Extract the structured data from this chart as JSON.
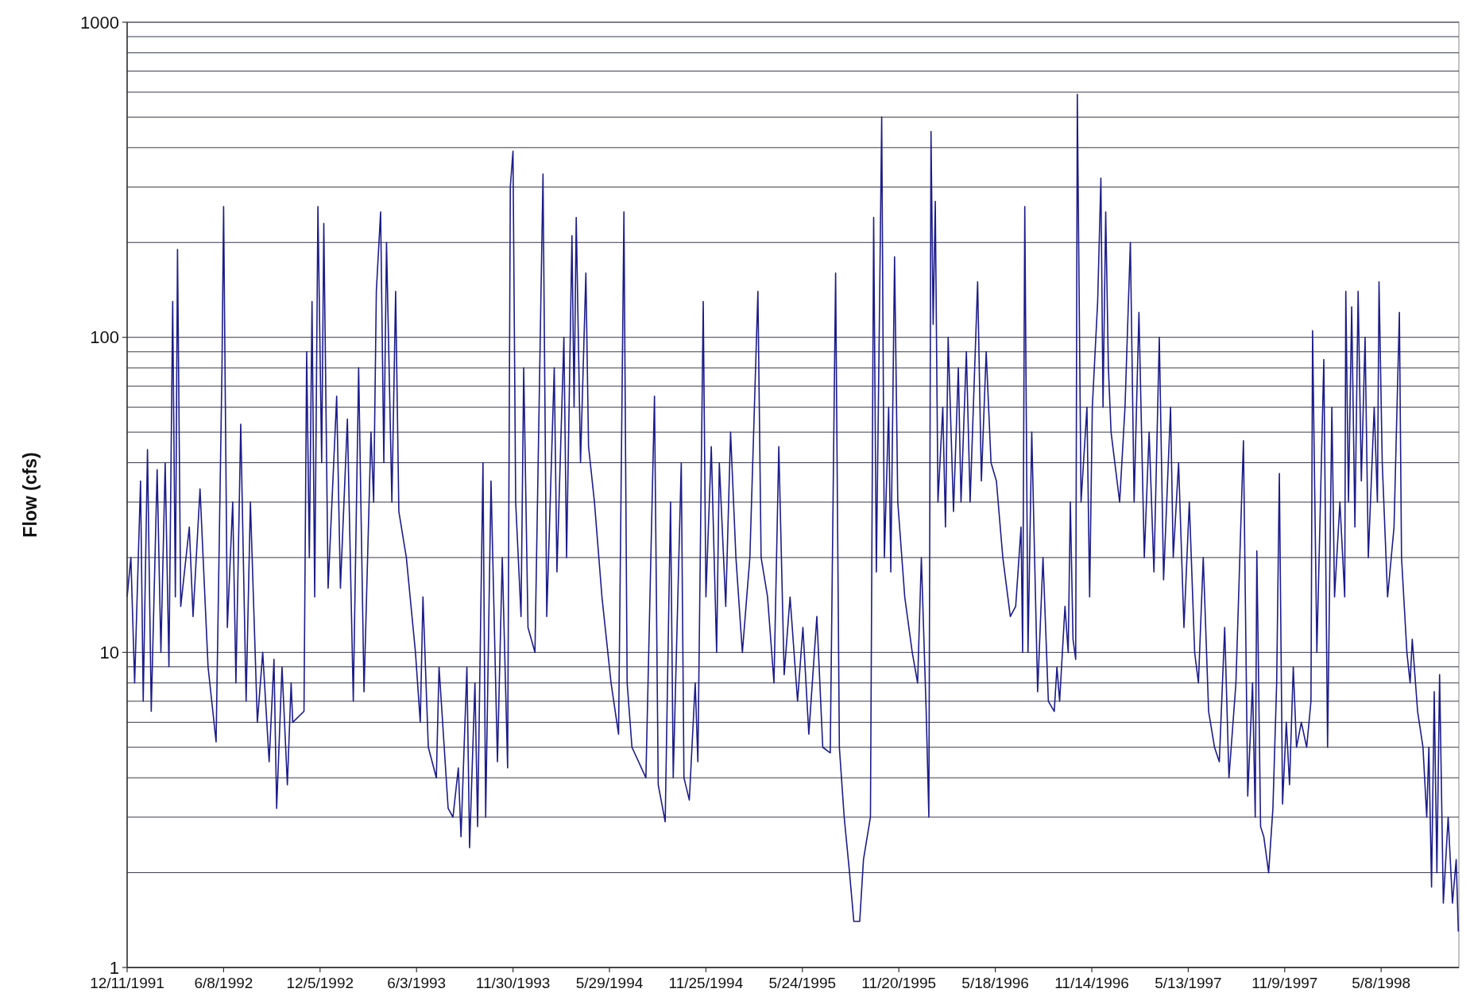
{
  "chart_data": {
    "type": "line",
    "ylabel": "Flow (cfs)",
    "log": "y",
    "grid": "y",
    "marker": "none",
    "line_style": "solid",
    "xlim": [
      "1991-12-11",
      "1998-09-30"
    ],
    "xticks": [
      {
        "value": "1991-12-11",
        "label": "12/11/1991"
      },
      {
        "value": "1992-06-08",
        "label": "6/8/1992"
      },
      {
        "value": "1992-12-05",
        "label": "12/5/1992"
      },
      {
        "value": "1993-06-03",
        "label": "6/3/1993"
      },
      {
        "value": "1993-11-30",
        "label": "11/30/1993"
      },
      {
        "value": "1994-05-29",
        "label": "5/29/1994"
      },
      {
        "value": "1994-11-25",
        "label": "11/25/1994"
      },
      {
        "value": "1995-05-24",
        "label": "5/24/1995"
      },
      {
        "value": "1995-11-20",
        "label": "11/20/1995"
      },
      {
        "value": "1996-05-18",
        "label": "5/18/1996"
      },
      {
        "value": "1996-11-14",
        "label": "11/14/1996"
      },
      {
        "value": "1997-05-13",
        "label": "5/13/1997"
      },
      {
        "value": "1997-11-09",
        "label": "11/9/1997"
      },
      {
        "value": "1998-05-08",
        "label": "5/8/1998"
      }
    ],
    "ylim": [
      1,
      1000
    ],
    "yticks": [
      1,
      {
        "value": 2,
        "label": null
      },
      {
        "value": 3,
        "label": null
      },
      {
        "value": 4,
        "label": null
      },
      {
        "value": 5,
        "label": null
      },
      {
        "value": 6,
        "label": null
      },
      {
        "value": 7,
        "label": null
      },
      {
        "value": 8,
        "label": null
      },
      {
        "value": 9,
        "label": null
      },
      10,
      {
        "value": 20,
        "label": null
      },
      {
        "value": 30,
        "label": null
      },
      {
        "value": 40,
        "label": null
      },
      {
        "value": 50,
        "label": null
      },
      {
        "value": 60,
        "label": null
      },
      {
        "value": 70,
        "label": null
      },
      {
        "value": 80,
        "label": null
      },
      {
        "value": 90,
        "label": null
      },
      100,
      {
        "value": 200,
        "label": null
      },
      {
        "value": 300,
        "label": null
      },
      {
        "value": 400,
        "label": null
      },
      {
        "value": 500,
        "label": null
      },
      {
        "value": 600,
        "label": null
      },
      {
        "value": 700,
        "label": null
      },
      {
        "value": 800,
        "label": null
      },
      {
        "value": 900,
        "label": null
      },
      1000
    ],
    "series": [
      {
        "color": "#1c1c8c",
        "x": [
          "1991-12-11",
          "1991-12-18",
          "1991-12-25",
          "1992-01-05",
          "1992-01-10",
          "1992-01-18",
          "1992-01-25",
          "1992-02-05",
          "1992-02-12",
          "1992-02-20",
          "1992-02-27",
          "1992-03-05",
          "1992-03-10",
          "1992-03-14",
          "1992-03-20",
          "1992-04-05",
          "1992-04-12",
          "1992-04-25",
          "1992-05-10",
          "1992-05-25",
          "1992-06-05",
          "1992-06-08",
          "1992-06-15",
          "1992-06-25",
          "1992-07-01",
          "1992-07-10",
          "1992-07-20",
          "1992-07-28",
          "1992-08-10",
          "1992-08-20",
          "1992-09-01",
          "1992-09-10",
          "1992-09-15",
          "1992-09-25",
          "1992-10-05",
          "1992-10-12",
          "1992-10-15",
          "1992-11-05",
          "1992-11-10",
          "1992-11-15",
          "1992-11-20",
          "1992-11-25",
          "1992-12-01",
          "1992-12-08",
          "1992-12-12",
          "1992-12-20",
          "1993-01-05",
          "1993-01-12",
          "1993-01-25",
          "1993-02-05",
          "1993-02-15",
          "1993-02-25",
          "1993-03-10",
          "1993-03-15",
          "1993-03-20",
          "1993-03-28",
          "1993-04-03",
          "1993-04-08",
          "1993-04-18",
          "1993-04-25",
          "1993-05-01",
          "1993-05-15",
          "1993-06-01",
          "1993-06-10",
          "1993-06-15",
          "1993-06-25",
          "1993-07-10",
          "1993-07-15",
          "1993-08-01",
          "1993-08-10",
          "1993-08-20",
          "1993-08-25",
          "1993-09-05",
          "1993-09-10",
          "1993-09-20",
          "1993-09-25",
          "1993-10-05",
          "1993-10-10",
          "1993-10-20",
          "1993-11-01",
          "1993-11-10",
          "1993-11-20",
          "1993-11-25",
          "1993-11-30",
          "1993-12-05",
          "1993-12-15",
          "1993-12-20",
          "1993-12-28",
          "1994-01-10",
          "1994-01-25",
          "1994-02-01",
          "1994-02-15",
          "1994-02-20",
          "1994-03-05",
          "1994-03-10",
          "1994-03-20",
          "1994-03-24",
          "1994-03-28",
          "1994-04-05",
          "1994-04-15",
          "1994-04-20",
          "1994-05-01",
          "1994-05-15",
          "1994-06-01",
          "1994-06-15",
          "1994-06-25",
          "1994-07-01",
          "1994-07-10",
          "1994-08-05",
          "1994-08-21",
          "1994-08-28",
          "1994-09-10",
          "1994-09-20",
          "1994-09-25",
          "1994-10-10",
          "1994-10-15",
          "1994-10-25",
          "1994-11-05",
          "1994-11-10",
          "1994-11-20",
          "1994-11-25",
          "1994-12-05",
          "1994-12-15",
          "1994-12-20",
          "1995-01-01",
          "1995-01-10",
          "1995-01-20",
          "1995-02-01",
          "1995-02-15",
          "1995-03-02",
          "1995-03-08",
          "1995-03-20",
          "1995-04-01",
          "1995-04-10",
          "1995-04-20",
          "1995-05-01",
          "1995-05-15",
          "1995-05-25",
          "1995-06-05",
          "1995-06-20",
          "1995-07-01",
          "1995-07-15",
          "1995-07-25",
          "1995-08-01",
          "1995-08-10",
          "1995-08-20",
          "1995-08-28",
          "1995-09-08",
          "1995-09-15",
          "1995-09-28",
          "1995-10-04",
          "1995-10-09",
          "1995-10-14",
          "1995-10-19",
          "1995-10-24",
          "1995-11-01",
          "1995-11-05",
          "1995-11-12",
          "1995-11-18",
          "1995-12-01",
          "1995-12-15",
          "1995-12-25",
          "1996-01-01",
          "1996-01-10",
          "1996-01-15",
          "1996-01-19",
          "1996-01-23",
          "1996-01-27",
          "1996-02-01",
          "1996-02-10",
          "1996-02-15",
          "1996-02-20",
          "1996-03-01",
          "1996-03-10",
          "1996-03-15",
          "1996-03-25",
          "1996-04-01",
          "1996-04-15",
          "1996-04-22",
          "1996-05-01",
          "1996-05-10",
          "1996-05-20",
          "1996-06-01",
          "1996-06-15",
          "1996-06-25",
          "1996-07-05",
          "1996-07-08",
          "1996-07-12",
          "1996-07-18",
          "1996-07-25",
          "1996-08-05",
          "1996-08-15",
          "1996-08-25",
          "1996-09-05",
          "1996-09-10",
          "1996-09-15",
          "1996-09-25",
          "1996-10-01",
          "1996-10-05",
          "1996-10-10",
          "1996-10-15",
          "1996-10-18",
          "1996-10-25",
          "1996-11-05",
          "1996-11-10",
          "1996-11-15",
          "1996-11-25",
          "1996-12-01",
          "1996-12-05",
          "1996-12-10",
          "1996-12-15",
          "1996-12-20",
          "1997-01-05",
          "1997-01-15",
          "1997-01-25",
          "1997-02-01",
          "1997-02-10",
          "1997-02-20",
          "1997-03-01",
          "1997-03-10",
          "1997-03-20",
          "1997-03-28",
          "1997-04-10",
          "1997-04-15",
          "1997-04-25",
          "1997-05-05",
          "1997-05-15",
          "1997-05-25",
          "1997-06-01",
          "1997-06-10",
          "1997-06-20",
          "1997-07-01",
          "1997-07-10",
          "1997-07-20",
          "1997-07-28",
          "1997-08-10",
          "1997-08-24",
          "1997-09-01",
          "1997-09-10",
          "1997-09-15",
          "1997-09-18",
          "1997-09-25",
          "1997-10-01",
          "1997-10-10",
          "1997-10-18",
          "1997-10-25",
          "1997-10-30",
          "1997-11-05",
          "1997-11-12",
          "1997-11-18",
          "1997-11-25",
          "1997-12-01",
          "1997-12-10",
          "1997-12-20",
          "1997-12-28",
          "1997-12-31",
          "1998-01-08",
          "1998-01-21",
          "1998-01-28",
          "1998-02-05",
          "1998-02-10",
          "1998-02-20",
          "1998-03-01",
          "1998-03-03",
          "1998-03-08",
          "1998-03-14",
          "1998-03-20",
          "1998-03-26",
          "1998-04-01",
          "1998-04-08",
          "1998-04-14",
          "1998-04-25",
          "1998-05-01",
          "1998-05-04",
          "1998-05-10",
          "1998-05-20",
          "1998-06-01",
          "1998-06-11",
          "1998-06-15",
          "1998-06-25",
          "1998-07-01",
          "1998-07-05",
          "1998-07-15",
          "1998-07-25",
          "1998-08-01",
          "1998-08-05",
          "1998-08-10",
          "1998-08-15",
          "1998-08-20",
          "1998-08-25",
          "1998-09-01",
          "1998-09-10",
          "1998-09-18",
          "1998-09-25",
          "1998-09-29"
        ],
        "values": [
          15,
          20,
          8,
          35,
          7,
          44,
          6.5,
          38,
          10,
          40,
          9,
          130,
          15,
          190,
          14,
          25,
          13,
          33,
          9,
          5.2,
          80,
          260,
          12,
          30,
          8,
          53,
          7,
          30,
          6,
          10,
          4.5,
          9.5,
          3.2,
          9,
          3.8,
          8,
          6,
          6.5,
          90,
          20,
          130,
          15,
          260,
          40,
          230,
          16,
          65,
          16,
          55,
          7,
          80,
          7.5,
          50,
          30,
          140,
          250,
          40,
          200,
          30,
          140,
          28,
          20,
          10,
          6,
          15,
          5,
          4,
          9,
          3.2,
          3,
          4.3,
          2.6,
          9,
          2.4,
          8,
          2.8,
          40,
          3,
          35,
          4.5,
          20,
          4.3,
          300,
          390,
          30,
          13,
          80,
          12,
          10,
          330,
          13,
          80,
          18,
          100,
          20,
          210,
          60,
          240,
          40,
          160,
          45,
          30,
          15,
          8,
          5.5,
          250,
          8,
          5,
          4,
          65,
          3.8,
          2.9,
          30,
          4,
          40,
          4,
          3.4,
          8,
          4.5,
          130,
          15,
          45,
          10,
          40,
          14,
          50,
          20,
          10,
          20,
          140,
          20,
          15,
          8,
          45,
          8.5,
          15,
          7,
          12,
          5.5,
          13,
          5,
          4.8,
          160,
          5,
          3,
          2,
          1.4,
          1.4,
          2.2,
          3,
          240,
          18,
          90,
          500,
          20,
          60,
          18,
          180,
          30,
          15,
          10,
          8,
          20,
          6.5,
          3,
          450,
          110,
          270,
          30,
          60,
          25,
          100,
          28,
          80,
          30,
          90,
          30,
          150,
          35,
          90,
          40,
          35,
          20,
          13,
          14,
          25,
          10,
          260,
          10,
          50,
          7.5,
          20,
          7,
          6.5,
          9,
          7,
          14,
          10,
          30,
          11,
          9.5,
          590,
          30,
          60,
          15,
          60,
          130,
          320,
          60,
          250,
          80,
          50,
          30,
          60,
          200,
          30,
          120,
          20,
          50,
          18,
          100,
          17,
          60,
          20,
          40,
          12,
          30,
          10,
          8,
          20,
          6.5,
          5,
          4.5,
          12,
          4,
          8,
          47,
          3.5,
          8,
          3,
          21,
          2.8,
          2.6,
          2,
          3.2,
          8,
          37,
          3.3,
          6,
          3.8,
          9,
          5,
          6,
          5,
          7,
          105,
          10,
          85,
          5,
          60,
          15,
          30,
          15,
          140,
          30,
          125,
          25,
          140,
          35,
          100,
          20,
          60,
          30,
          150,
          40,
          15,
          25,
          120,
          20,
          10,
          8,
          11,
          6.5,
          5,
          3,
          5,
          1.8,
          7.5,
          2,
          8.5,
          1.6,
          3,
          1.6,
          2.2,
          1.3
        ]
      }
    ]
  }
}
